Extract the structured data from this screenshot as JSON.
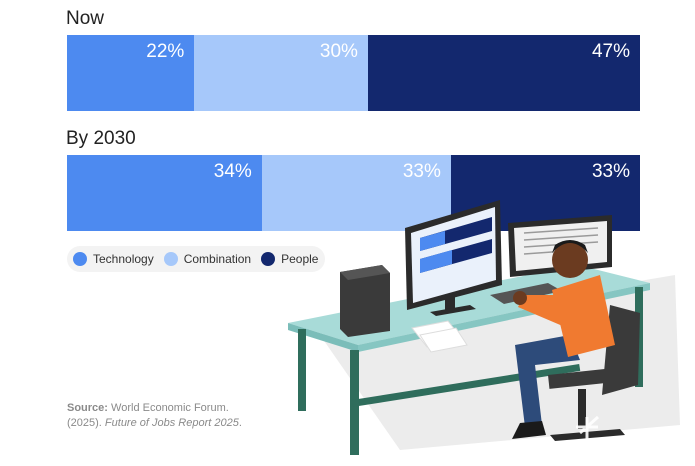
{
  "chart_data": {
    "type": "bar",
    "orientation": "horizontal-stacked",
    "categories": [
      "Now",
      "By 2030"
    ],
    "series": [
      {
        "name": "Technology",
        "values": [
          22,
          34
        ],
        "labels": [
          "22%",
          "34%"
        ],
        "color": "#4d8af0"
      },
      {
        "name": "Combination",
        "values": [
          30,
          33
        ],
        "labels": [
          "30%",
          "33%"
        ],
        "color": "#a6c8fa"
      },
      {
        "name": "People",
        "values": [
          47,
          33
        ],
        "labels": [
          "47%",
          "33%"
        ],
        "color": "#13286e"
      }
    ],
    "legend_placement": "bottom-left"
  },
  "source": {
    "label": "Source:",
    "text_line1": "World Economic Forum.",
    "text_line2_prefix": "(2025). ",
    "text_line2_title": "Future of Jobs Report 2025",
    "text_line2_suffix": "."
  }
}
